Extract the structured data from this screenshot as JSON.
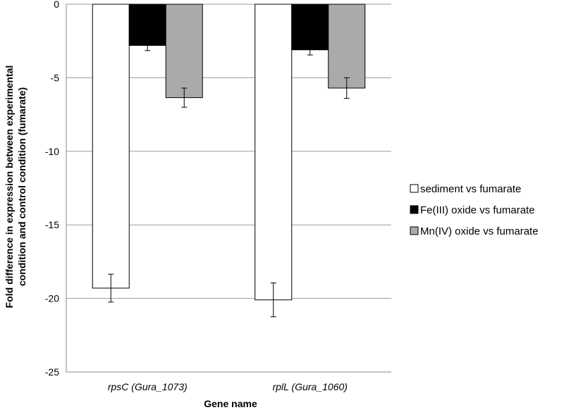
{
  "chart_data": {
    "type": "bar",
    "title": "",
    "xlabel": "Gene name",
    "ylabel_lines": [
      "Fold difference in expression between experimental",
      "condition and control condition (fumarate)"
    ],
    "categories": [
      "rpsC (Gura_1073)",
      "rplL (Gura_1060)"
    ],
    "ylim": [
      -25,
      0
    ],
    "yticks": [
      0,
      -5,
      -10,
      -15,
      -20,
      -25
    ],
    "grid": true,
    "legend_position": "right",
    "series": [
      {
        "name": "sediment vs fumarate",
        "color": "#ffffff",
        "values": [
          -19.3,
          -20.1
        ],
        "errors": [
          0.95,
          1.15
        ]
      },
      {
        "name": "Fe(III) oxide vs fumarate",
        "color": "#000000",
        "values": [
          -2.8,
          -3.1
        ],
        "errors": [
          0.35,
          0.35
        ]
      },
      {
        "name": "Mn(IV) oxide vs fumarate",
        "color": "#aaaaaa",
        "values": [
          -6.35,
          -5.7
        ],
        "errors": [
          0.65,
          0.7
        ]
      }
    ]
  }
}
